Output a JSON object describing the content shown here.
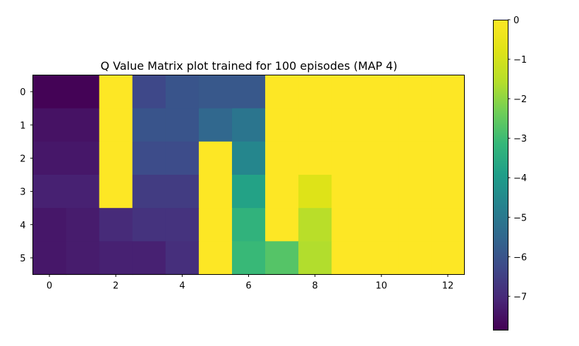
{
  "chart_data": {
    "type": "heatmap",
    "title": "Q Value Matrix plot trained for 100 episodes (MAP 4)",
    "xlabel": "",
    "ylabel": "",
    "colormap": "viridis",
    "clim": [
      -7.85,
      0
    ],
    "x_ticks": [
      0,
      2,
      4,
      6,
      8,
      10,
      12
    ],
    "y_ticks": [
      0,
      1,
      2,
      3,
      4,
      5
    ],
    "colorbar_ticks": [
      0,
      -1,
      -2,
      -3,
      -4,
      -5,
      -6,
      -7
    ],
    "grid": false,
    "rows": 6,
    "cols": 13,
    "values": [
      [
        -7.8,
        -7.8,
        0,
        -6.3,
        -6.0,
        -5.9,
        -5.9,
        0,
        0,
        0,
        0,
        0,
        0
      ],
      [
        -7.5,
        -7.5,
        0,
        -6.0,
        -6.0,
        -5.5,
        -5.1,
        0,
        0,
        0,
        0,
        0,
        0
      ],
      [
        -7.4,
        -7.4,
        0,
        -6.2,
        -6.2,
        0,
        -4.6,
        0,
        0,
        0,
        0,
        0,
        0
      ],
      [
        -7.2,
        -7.2,
        0,
        -6.6,
        -6.6,
        0,
        -3.8,
        0,
        -0.8,
        0,
        0,
        0,
        0
      ],
      [
        -7.4,
        -7.3,
        -7.0,
        -6.8,
        -6.8,
        0,
        -3.3,
        0,
        -1.5,
        0,
        0,
        0,
        0
      ],
      [
        -7.4,
        -7.3,
        -7.2,
        -7.2,
        -6.9,
        0,
        -3.1,
        -2.7,
        -1.6,
        0,
        0,
        0,
        0
      ]
    ]
  }
}
